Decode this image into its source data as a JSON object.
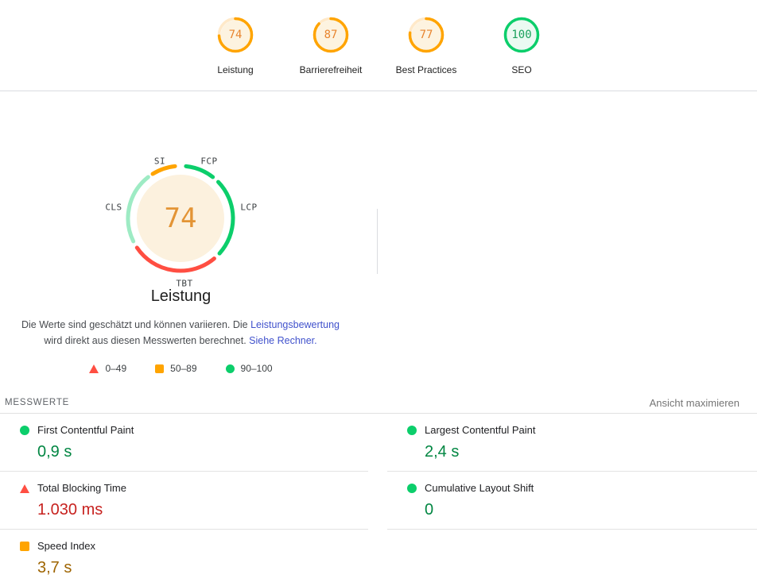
{
  "header": {
    "categories": [
      {
        "label": "Leistung",
        "score": 74,
        "level": "average"
      },
      {
        "label": "Barrierefreiheit",
        "score": 87,
        "level": "average"
      },
      {
        "label": "Best Practices",
        "score": 77,
        "level": "average"
      },
      {
        "label": "SEO",
        "score": 100,
        "level": "pass"
      }
    ]
  },
  "performance": {
    "title": "Leistung",
    "score": 74,
    "disclaimer": {
      "text1": "Die Werte sind geschätzt und können variieren. Die ",
      "link1": "Leistungsbewertung",
      "text2": " wird direkt aus diesen Messwerten berechnet. ",
      "link2": "Siehe Rechner."
    },
    "gauge": {
      "center_score": 74,
      "segments": [
        {
          "label": "FCP",
          "start": 6,
          "end": 38,
          "color": "#0cce6b",
          "opacity": 1
        },
        {
          "label": "LCP",
          "start": 46,
          "end": 132,
          "color": "#0cce6b",
          "opacity": 1
        },
        {
          "label": "TBT",
          "start": 140,
          "end": 236,
          "color": "#ff4e42",
          "opacity": 1
        },
        {
          "label": "CLS",
          "start": 244,
          "end": 322,
          "color": "#0cce6b",
          "opacity": 0.4
        },
        {
          "label": "SI",
          "start": 328,
          "end": 354,
          "color": "#ffa400",
          "opacity": 1
        }
      ]
    },
    "legend": [
      {
        "range": "0–49",
        "level": "fail"
      },
      {
        "range": "50–89",
        "level": "average"
      },
      {
        "range": "90–100",
        "level": "pass"
      }
    ]
  },
  "metrics": {
    "section_title": "MESSWERTE",
    "expand_label": "Ansicht maximieren",
    "items": [
      {
        "name": "First Contentful Paint",
        "value": "0,9 s",
        "level": "pass"
      },
      {
        "name": "Largest Contentful Paint",
        "value": "2,4 s",
        "level": "pass"
      },
      {
        "name": "Total Blocking Time",
        "value": "1.030 ms",
        "level": "fail"
      },
      {
        "name": "Cumulative Layout Shift",
        "value": "0",
        "level": "pass"
      },
      {
        "name": "Speed Index",
        "value": "3,7 s",
        "level": "average"
      }
    ]
  },
  "colors": {
    "pass": "#0cce6b",
    "average": "#ffa400",
    "fail": "#ff4e42",
    "pass_text": "#018642",
    "average_text": "#9e6400",
    "fail_text": "#c7221f",
    "link": "#4152cc",
    "levels": {
      "pass": {
        "arc": "#0cce6b",
        "track": "#d9f4e5",
        "bg": "#ebfaf2",
        "num": "#1ba15c"
      },
      "average": {
        "arc": "#ffa400",
        "track": "#ffe9c9",
        "bg": "#fdf3e0",
        "num": "#e8842e"
      },
      "fail": {
        "arc": "#ff4e42",
        "track": "#ffd8d5",
        "bg": "#fdeceb",
        "num": "#d93025"
      }
    }
  }
}
